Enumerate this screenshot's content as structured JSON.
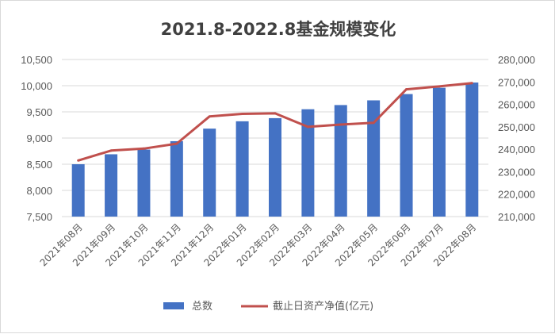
{
  "chart_data": {
    "type": "bar+line",
    "title": "2021.8-2022.8基金规模变化",
    "categories": [
      "2021年08月",
      "2021年09月",
      "2021年10月",
      "2021年11月",
      "2021年12月",
      "2022年01月",
      "2022年02月",
      "2022年03月",
      "2022年04月",
      "2022年05月",
      "2022年06月",
      "2022年07月",
      "2022年08月"
    ],
    "left_axis": {
      "min": 7500,
      "max": 10500,
      "step": 500,
      "ticks": [
        "7,500",
        "8,000",
        "8,500",
        "9,000",
        "9,500",
        "10,000",
        "10,500"
      ]
    },
    "right_axis": {
      "min": 210000,
      "max": 280000,
      "step": 10000,
      "ticks": [
        "210,000",
        "220,000",
        "230,000",
        "240,000",
        "250,000",
        "260,000",
        "270,000",
        "280,000"
      ]
    },
    "series": [
      {
        "name": "总数",
        "type": "bar",
        "axis": "left",
        "color": "#4472C4",
        "values": [
          8500,
          8690,
          8780,
          8940,
          9180,
          9320,
          9380,
          9550,
          9630,
          9720,
          9840,
          9960,
          10060
        ]
      },
      {
        "name": "截止日资产净值(亿元)",
        "type": "line",
        "axis": "right",
        "color": "#C0504D",
        "values": [
          235000,
          239400,
          240300,
          242500,
          254600,
          255800,
          256000,
          250000,
          251000,
          251800,
          266700,
          268000,
          269500
        ]
      }
    ],
    "grid": true,
    "legend": "bottom"
  }
}
